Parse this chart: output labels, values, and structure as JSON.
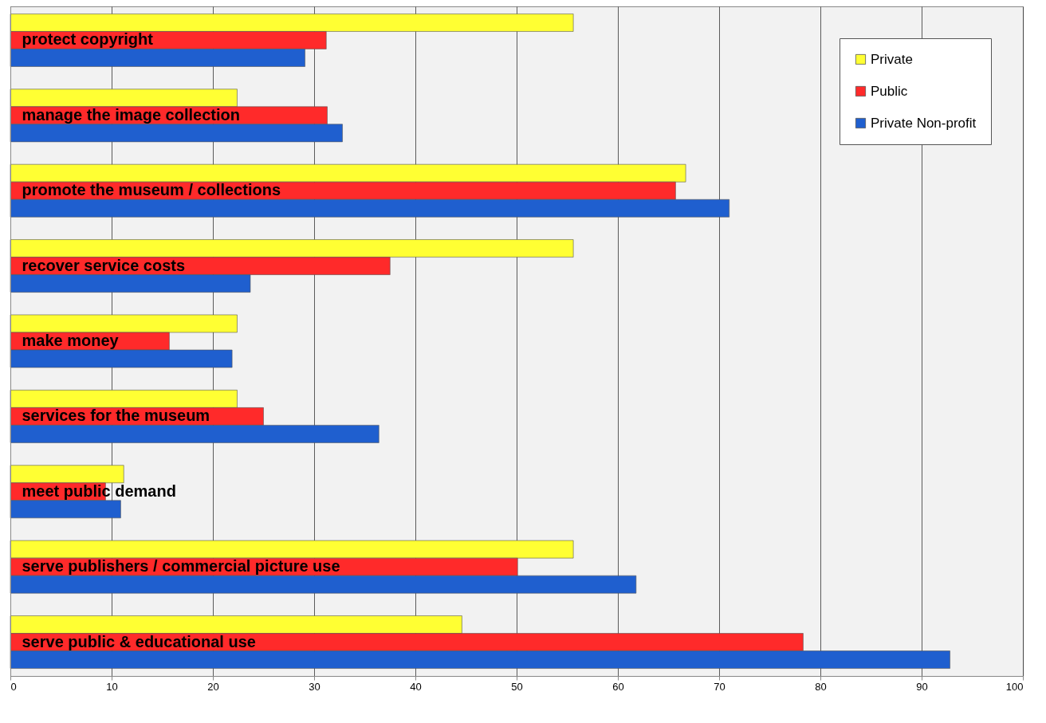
{
  "chart_data": {
    "type": "bar",
    "orientation": "horizontal",
    "categories": [
      "protect copyright",
      "manage the image collection",
      "promote the museum / collections",
      "recover service costs",
      "make money",
      "services for the museum",
      "meet public demand",
      "serve publishers / commercial picture use",
      "serve public & educational use"
    ],
    "series": [
      {
        "name": "Private",
        "color": "#ffff33",
        "values": [
          55.6,
          22.4,
          66.7,
          55.6,
          22.4,
          22.4,
          11.2,
          55.6,
          44.6
        ]
      },
      {
        "name": "Public",
        "color": "#ff2a2a",
        "values": [
          31.2,
          31.3,
          65.7,
          37.5,
          15.7,
          25.0,
          9.4,
          50.1,
          78.3
        ]
      },
      {
        "name": "Private Non-profit",
        "color": "#1f5fcf",
        "values": [
          29.1,
          32.8,
          71.0,
          23.7,
          21.9,
          36.4,
          10.9,
          61.8,
          92.8
        ]
      }
    ],
    "xlim": [
      0,
      100
    ],
    "xticks": [
      0,
      10,
      20,
      30,
      40,
      50,
      60,
      70,
      80,
      90,
      100
    ],
    "grid": "x",
    "legend": "top right"
  }
}
